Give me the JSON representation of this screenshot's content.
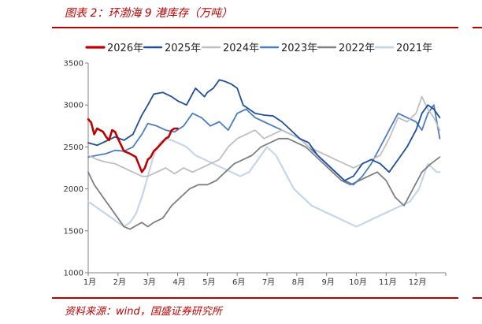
{
  "header": {
    "title": "图表 2：环渤海 9 港库存（万吨）"
  },
  "footer": {
    "source": "资料来源：wind，国盛证券研究所"
  },
  "chart_data": {
    "type": "line",
    "title": "",
    "xlabel": "",
    "ylabel": "",
    "ylim": [
      1000,
      3500
    ],
    "yticks": [
      1000,
      1500,
      2000,
      2500,
      3000,
      3500
    ],
    "xticks": [
      "1月",
      "2月",
      "3月",
      "4月",
      "5月",
      "6月",
      "7月",
      "8月",
      "9月",
      "10月",
      "11月",
      "12月"
    ],
    "grid": false,
    "legend_position": "top",
    "series": [
      {
        "name": "2026年",
        "color": "#c00000",
        "width": 2.6,
        "x": [
          0,
          0.1,
          0.2,
          0.3,
          0.4,
          0.5,
          0.6,
          0.7,
          0.8,
          0.9,
          1.0,
          1.2,
          1.4,
          1.6,
          1.8,
          1.9,
          2.0,
          2.1,
          2.2,
          2.35,
          2.5,
          2.6,
          2.7,
          2.8,
          2.9,
          3.0
        ],
        "y": [
          2830,
          2790,
          2650,
          2720,
          2700,
          2680,
          2620,
          2580,
          2700,
          2680,
          2600,
          2450,
          2420,
          2380,
          2200,
          2250,
          2350,
          2380,
          2450,
          2500,
          2560,
          2600,
          2620,
          2700,
          2720,
          2720
        ]
      },
      {
        "name": "2025年",
        "color": "#1f4e9c",
        "width": 1.8,
        "x": [
          0,
          0.3,
          0.6,
          0.9,
          1.2,
          1.5,
          1.8,
          2.0,
          2.2,
          2.5,
          2.8,
          3.0,
          3.3,
          3.6,
          3.9,
          4.0,
          4.2,
          4.4,
          4.6,
          4.8,
          5.0,
          5.2,
          5.4,
          5.6,
          5.9,
          6.2,
          6.5,
          6.8,
          7.1,
          7.4,
          7.7,
          8.0,
          8.3,
          8.6,
          8.9,
          9.2,
          9.5,
          9.8,
          10.1,
          10.4,
          10.7,
          11.0,
          11.2,
          11.4,
          11.6,
          11.8
        ],
        "y": [
          2550,
          2520,
          2570,
          2620,
          2580,
          2650,
          2880,
          3000,
          3130,
          3150,
          3100,
          3050,
          3000,
          3200,
          3100,
          3150,
          3200,
          3300,
          3280,
          3250,
          3200,
          3000,
          2950,
          2900,
          2880,
          2870,
          2800,
          2700,
          2600,
          2550,
          2400,
          2300,
          2200,
          2100,
          2150,
          2300,
          2350,
          2300,
          2200,
          2350,
          2500,
          2700,
          2900,
          3000,
          2950,
          2850
        ]
      },
      {
        "name": "2024年",
        "color": "#bfbfbf",
        "width": 1.8,
        "x": [
          0,
          0.3,
          0.6,
          0.9,
          1.2,
          1.5,
          1.8,
          2.0,
          2.3,
          2.6,
          2.9,
          3.2,
          3.5,
          3.8,
          4.1,
          4.4,
          4.7,
          5.0,
          5.3,
          5.6,
          5.9,
          6.2,
          6.5,
          6.8,
          7.1,
          7.4,
          7.7,
          8.0,
          8.3,
          8.6,
          8.9,
          9.2,
          9.5,
          9.8,
          10.1,
          10.4,
          10.7,
          11.0,
          11.2,
          11.4,
          11.6,
          11.8
        ],
        "y": [
          2400,
          2350,
          2320,
          2300,
          2250,
          2200,
          2150,
          2150,
          2200,
          2250,
          2180,
          2250,
          2200,
          2250,
          2300,
          2350,
          2500,
          2600,
          2650,
          2700,
          2600,
          2650,
          2700,
          2650,
          2600,
          2500,
          2450,
          2400,
          2350,
          2300,
          2250,
          2300,
          2350,
          2400,
          2600,
          2850,
          2800,
          2900,
          3100,
          2950,
          2850,
          2700
        ]
      },
      {
        "name": "2023年",
        "color": "#4a7ec4",
        "width": 1.8,
        "x": [
          0,
          0.3,
          0.6,
          0.9,
          1.2,
          1.5,
          1.8,
          2.0,
          2.3,
          2.6,
          2.9,
          3.2,
          3.5,
          3.8,
          4.1,
          4.4,
          4.7,
          5.0,
          5.3,
          5.6,
          5.9,
          6.2,
          6.5,
          6.8,
          7.1,
          7.4,
          7.7,
          8.0,
          8.3,
          8.6,
          8.9,
          9.2,
          9.5,
          9.8,
          10.1,
          10.4,
          10.7,
          11.0,
          11.2,
          11.4,
          11.6,
          11.8
        ],
        "y": [
          2380,
          2400,
          2420,
          2460,
          2450,
          2500,
          2650,
          2780,
          2750,
          2700,
          2680,
          2750,
          2900,
          2850,
          2750,
          2800,
          2700,
          2900,
          2950,
          2850,
          2800,
          2750,
          2700,
          2650,
          2600,
          2500,
          2400,
          2300,
          2200,
          2100,
          2050,
          2150,
          2300,
          2500,
          2700,
          2900,
          2850,
          2800,
          2700,
          2900,
          3000,
          2600
        ]
      },
      {
        "name": "2022年",
        "color": "#7f7f7f",
        "width": 1.8,
        "x": [
          0,
          0.2,
          0.4,
          0.6,
          0.8,
          1.0,
          1.2,
          1.4,
          1.6,
          1.8,
          2.0,
          2.2,
          2.5,
          2.8,
          3.1,
          3.4,
          3.7,
          4.0,
          4.3,
          4.6,
          4.9,
          5.2,
          5.5,
          5.8,
          6.1,
          6.4,
          6.7,
          7.0,
          7.3,
          7.6,
          7.9,
          8.2,
          8.5,
          8.8,
          9.1,
          9.4,
          9.7,
          10.0,
          10.3,
          10.6,
          10.9,
          11.2,
          11.5,
          11.8
        ],
        "y": [
          2200,
          2050,
          1950,
          1850,
          1750,
          1650,
          1550,
          1520,
          1560,
          1600,
          1550,
          1600,
          1650,
          1800,
          1900,
          2000,
          2050,
          2050,
          2100,
          2200,
          2300,
          2350,
          2400,
          2500,
          2550,
          2600,
          2600,
          2550,
          2500,
          2400,
          2300,
          2200,
          2100,
          2050,
          2100,
          2150,
          2200,
          2100,
          1900,
          1800,
          2000,
          2200,
          2300,
          2380
        ]
      },
      {
        "name": "2021年",
        "color": "#c5d5ea",
        "width": 2.2,
        "x": [
          0,
          0.2,
          0.4,
          0.6,
          0.8,
          1.0,
          1.2,
          1.4,
          1.6,
          1.8,
          2.0,
          2.2,
          2.4,
          2.6,
          2.8,
          3.0,
          3.3,
          3.6,
          3.9,
          4.2,
          4.5,
          4.8,
          5.1,
          5.4,
          5.7,
          6.0,
          6.3,
          6.6,
          6.9,
          7.2,
          7.5,
          7.8,
          8.1,
          8.4,
          8.7,
          9.0,
          9.3,
          9.6,
          9.9,
          10.2,
          10.5,
          10.8,
          11.1,
          11.4,
          11.7,
          11.8
        ],
        "y": [
          1850,
          1800,
          1750,
          1700,
          1650,
          1600,
          1550,
          1600,
          1700,
          1900,
          2150,
          2400,
          2550,
          2600,
          2580,
          2550,
          2500,
          2400,
          2350,
          2300,
          2250,
          2200,
          2150,
          2200,
          2350,
          2500,
          2400,
          2200,
          2000,
          1900,
          1800,
          1750,
          1700,
          1650,
          1600,
          1550,
          1600,
          1650,
          1700,
          1750,
          1800,
          1850,
          2000,
          2300,
          2200,
          2200
        ]
      }
    ]
  }
}
